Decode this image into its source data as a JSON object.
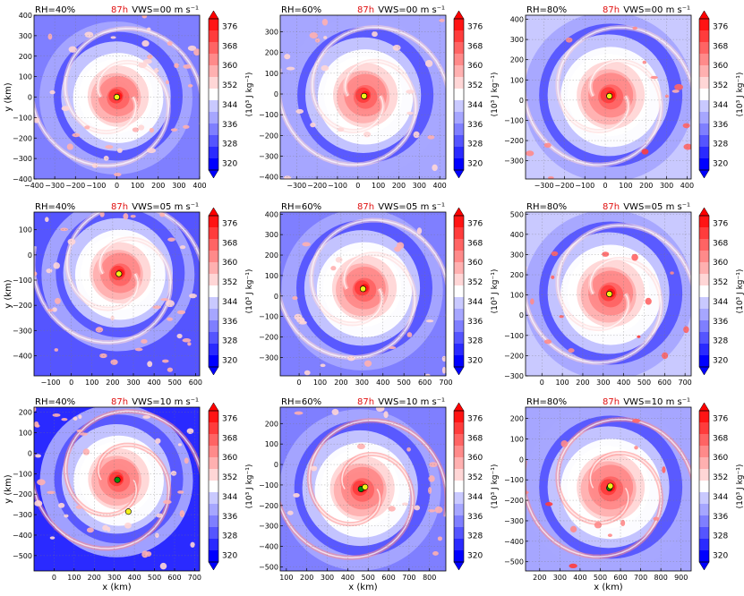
{
  "figure": {
    "time_label": "87h",
    "colors": {
      "time": "#e01010",
      "inner_center": "#0a8a0a",
      "outer_center": "#f2f21a"
    }
  },
  "colorbar": {
    "ticks": [
      "376",
      "368",
      "360",
      "352",
      "344",
      "336",
      "328",
      "320"
    ],
    "label": "(10³ J kg⁻¹)",
    "colors": [
      "#0000ff",
      "#2a2aff",
      "#5555ff",
      "#7f7fff",
      "#a6a6ff",
      "#c9c9ff",
      "#ffffff",
      "#ffd6d6",
      "#ffb0b0",
      "#ff8a8a",
      "#ff6464",
      "#ff3c3c",
      "#ff1414"
    ]
  },
  "chart_data": [
    {
      "type": "heatmap",
      "rh": "RH=40%",
      "vws": "VWS=00 m s⁻¹",
      "time": "87h",
      "xlabel": "",
      "ylabel": "y (km)",
      "xlim": [
        -400,
        400
      ],
      "ylim": [
        -400,
        400
      ],
      "xticks": [
        "−400",
        "−300",
        "−200",
        "−100",
        "0",
        "100",
        "200",
        "300",
        "400"
      ],
      "yticks": [
        "400",
        "300",
        "200",
        "100",
        "0",
        "−100",
        "−200",
        "−300",
        "−400"
      ],
      "center_inner": [
        0,
        0
      ],
      "center_outer": [
        0,
        0
      ]
    },
    {
      "type": "heatmap",
      "rh": "RH=60%",
      "vws": "VWS=00 m s⁻¹",
      "time": "87h",
      "xlabel": "",
      "ylabel": "",
      "xlim": [
        -380,
        430
      ],
      "ylim": [
        -410,
        380
      ],
      "xticks": [
        "−300",
        "−200",
        "−100",
        "0",
        "100",
        "200",
        "300",
        "400"
      ],
      "yticks": [
        "300",
        "200",
        "100",
        "0",
        "−100",
        "−200",
        "−300",
        "−400"
      ],
      "center_inner": [
        30,
        -10
      ],
      "center_outer": [
        30,
        -10
      ]
    },
    {
      "type": "heatmap",
      "rh": "RH=80%",
      "vws": "VWS=00 m s⁻¹",
      "time": "87h",
      "xlabel": "",
      "ylabel": "",
      "xlim": [
        -390,
        420
      ],
      "ylim": [
        -390,
        420
      ],
      "xticks": [
        "−300",
        "−200",
        "−100",
        "0",
        "100",
        "200",
        "300",
        "400"
      ],
      "yticks": [
        "400",
        "300",
        "200",
        "100",
        "0",
        "−100",
        "−200",
        "−300"
      ],
      "center_inner": [
        20,
        20
      ],
      "center_outer": [
        20,
        20
      ]
    },
    {
      "type": "heatmap",
      "rh": "RH=40%",
      "vws": "VWS=05 m s⁻¹",
      "time": "87h",
      "xlabel": "",
      "ylabel": "y (km)",
      "xlim": [
        -180,
        620
      ],
      "ylim": [
        -480,
        170
      ],
      "xticks": [
        "−100",
        "0",
        "100",
        "200",
        "300",
        "400",
        "500",
        "600"
      ],
      "yticks": [
        "100",
        "0",
        "−100",
        "−200",
        "−300",
        "−400"
      ],
      "center_inner": [
        230,
        -75
      ],
      "center_outer": [
        230,
        -75
      ]
    },
    {
      "type": "heatmap",
      "rh": "RH=60%",
      "vws": "VWS=05 m s⁻¹",
      "time": "87h",
      "xlabel": "",
      "ylabel": "",
      "xlim": [
        -90,
        700
      ],
      "ylim": [
        -390,
        410
      ],
      "xticks": [
        "0",
        "100",
        "200",
        "300",
        "400",
        "500",
        "600",
        "700"
      ],
      "yticks": [
        "400",
        "300",
        "200",
        "100",
        "0",
        "−100",
        "−200",
        "−300"
      ],
      "center_inner": [
        305,
        35
      ],
      "center_outer": [
        305,
        35
      ]
    },
    {
      "type": "heatmap",
      "rh": "RH=80%",
      "vws": "VWS=05 m s⁻¹",
      "time": "87h",
      "xlabel": "",
      "ylabel": "",
      "xlim": [
        -80,
        730
      ],
      "ylim": [
        -300,
        510
      ],
      "xticks": [
        "0",
        "100",
        "200",
        "300",
        "400",
        "500",
        "600",
        "700"
      ],
      "yticks": [
        "500",
        "400",
        "300",
        "200",
        "100",
        "0",
        "−100",
        "−200",
        "−300"
      ],
      "center_inner": [
        330,
        105
      ],
      "center_outer": [
        330,
        105
      ]
    },
    {
      "type": "heatmap",
      "rh": "RH=40%",
      "vws": "VWS=10 m s⁻¹",
      "time": "87h",
      "xlabel": "x (km)",
      "ylabel": "y (km)",
      "xlim": [
        -100,
        725
      ],
      "ylim": [
        -575,
        225
      ],
      "xticks": [
        "0",
        "100",
        "200",
        "300",
        "400",
        "500",
        "600",
        "700"
      ],
      "yticks": [
        "200",
        "100",
        "0",
        "−100",
        "−200",
        "−300",
        "−400",
        "−500"
      ],
      "center_inner": [
        315,
        -130
      ],
      "center_outer": [
        370,
        -285
      ]
    },
    {
      "type": "heatmap",
      "rh": "RH=60%",
      "vws": "VWS=10 m s⁻¹",
      "time": "87h",
      "xlabel": "x (km)",
      "ylabel": "",
      "xlim": [
        70,
        880
      ],
      "ylim": [
        -520,
        280
      ],
      "xticks": [
        "100",
        "200",
        "300",
        "400",
        "500",
        "600",
        "700",
        "800"
      ],
      "yticks": [
        "200",
        "100",
        "0",
        "−100",
        "−200",
        "−300",
        "−400",
        "−500"
      ],
      "center_inner": [
        465,
        -120
      ],
      "center_outer": [
        485,
        -110
      ]
    },
    {
      "type": "heatmap",
      "rh": "RH=80%",
      "vws": "VWS=10 m s⁻¹",
      "time": "87h",
      "xlabel": "x (km)",
      "ylabel": "",
      "xlim": [
        130,
        950
      ],
      "ylim": [
        -545,
        255
      ],
      "xticks": [
        "200",
        "300",
        "400",
        "500",
        "600",
        "700",
        "800",
        "900"
      ],
      "yticks": [
        "200",
        "100",
        "0",
        "−100",
        "−200",
        "−300",
        "−400",
        "−500"
      ],
      "center_inner": [
        545,
        -140
      ],
      "center_outer": [
        550,
        -130
      ]
    }
  ]
}
